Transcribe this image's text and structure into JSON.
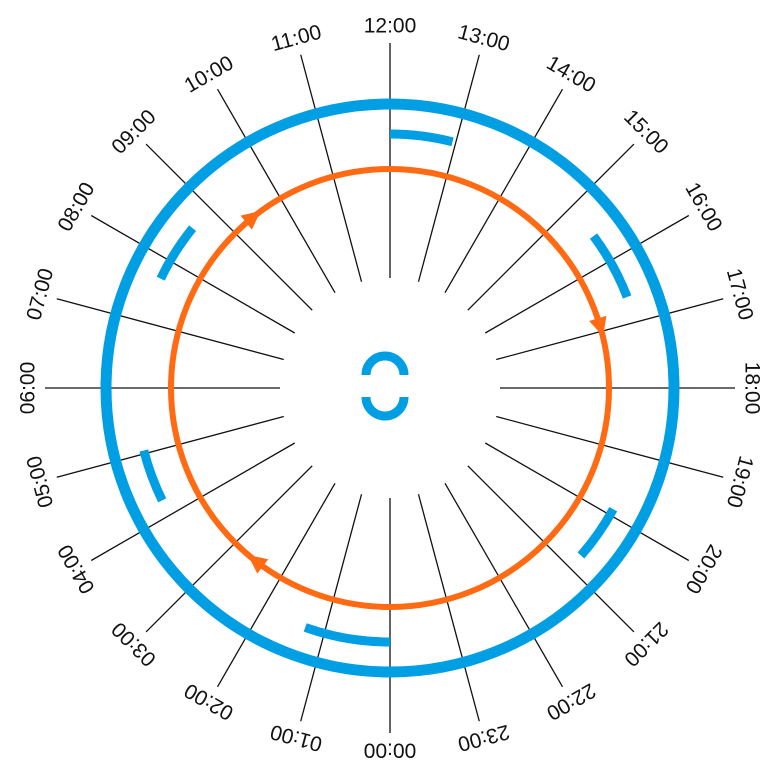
{
  "colors": {
    "background": "#ffffff",
    "outer_ring": "#009fe3",
    "inner_loop": "#ff6a13",
    "tick_line": "#111111",
    "label": "#111111"
  },
  "hours": [
    {
      "label": "00:00",
      "hour": 0
    },
    {
      "label": "01:00",
      "hour": 1
    },
    {
      "label": "02:00",
      "hour": 2
    },
    {
      "label": "03:00",
      "hour": 3
    },
    {
      "label": "04:00",
      "hour": 4
    },
    {
      "label": "05:00",
      "hour": 5
    },
    {
      "label": "06:00",
      "hour": 6
    },
    {
      "label": "07:00",
      "hour": 7
    },
    {
      "label": "08:00",
      "hour": 8
    },
    {
      "label": "09:00",
      "hour": 9
    },
    {
      "label": "10:00",
      "hour": 10
    },
    {
      "label": "11:00",
      "hour": 11
    },
    {
      "label": "12:00",
      "hour": 12
    },
    {
      "label": "13:00",
      "hour": 13
    },
    {
      "label": "14:00",
      "hour": 14
    },
    {
      "label": "15:00",
      "hour": 15
    },
    {
      "label": "16:00",
      "hour": 16
    },
    {
      "label": "17:00",
      "hour": 17
    },
    {
      "label": "18:00",
      "hour": 18
    },
    {
      "label": "19:00",
      "hour": 19
    },
    {
      "label": "20:00",
      "hour": 20
    },
    {
      "label": "21:00",
      "hour": 21
    },
    {
      "label": "22:00",
      "hour": 22
    },
    {
      "label": "23:00",
      "hour": 23
    }
  ],
  "blue_segments": [
    {
      "start_hour": 0,
      "end_hour": 1.3
    },
    {
      "start_hour": 4.25,
      "end_hour": 5.05
    },
    {
      "start_hour": 7.7,
      "end_hour": 8.6
    },
    {
      "start_hour": 12,
      "end_hour": 12.95
    },
    {
      "start_hour": 15.55,
      "end_hour": 16.6
    },
    {
      "start_hour": 19.9,
      "end_hour": 20.75
    }
  ],
  "direction_arrows": [
    {
      "at_hour": 2.5,
      "direction": "clockwise"
    },
    {
      "at_hour": 9.4,
      "direction": "clockwise"
    },
    {
      "at_hour": 16.9,
      "direction": "clockwise"
    }
  ],
  "center_icon": "cycle-icon"
}
